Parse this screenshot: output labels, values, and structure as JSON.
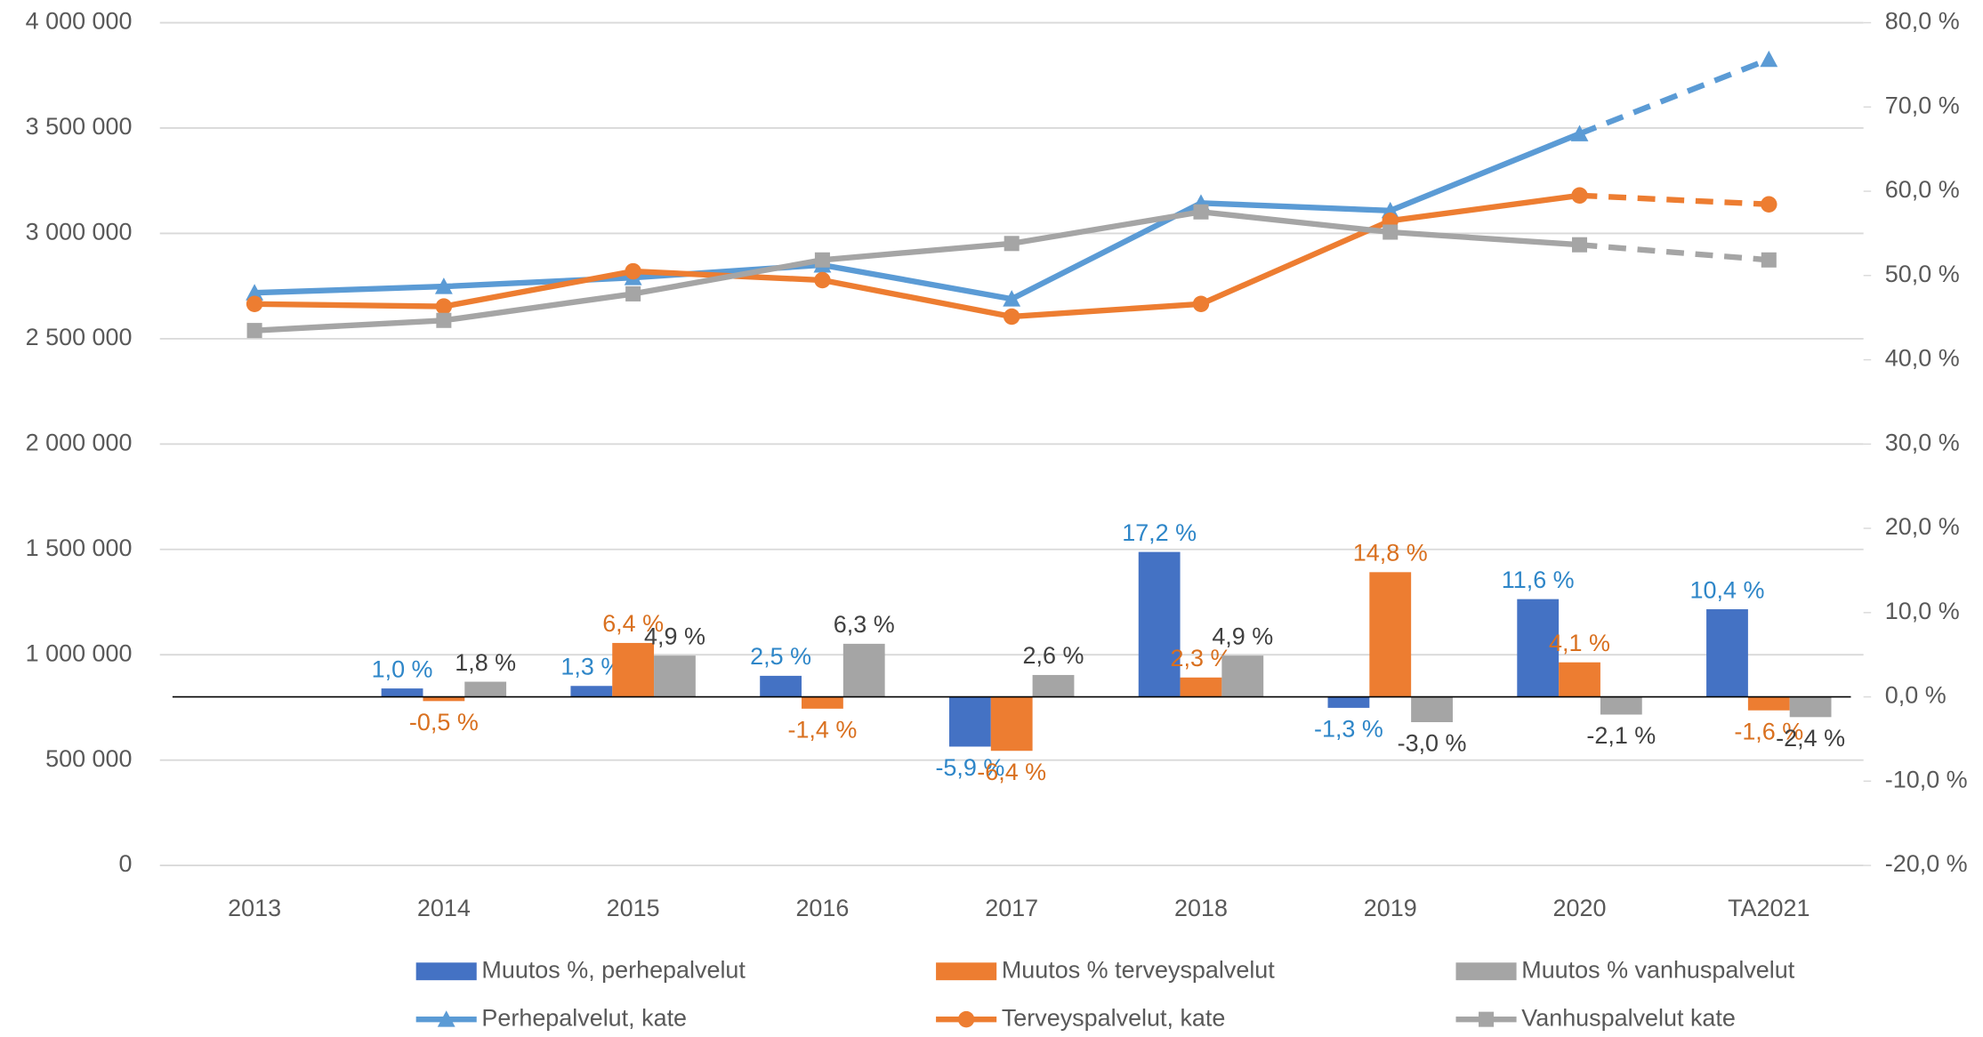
{
  "chart_data": {
    "type": "combo",
    "categories": [
      "2013",
      "2014",
      "2015",
      "2016",
      "2017",
      "2018",
      "2019",
      "2020",
      "TA2021"
    ],
    "ylim": [
      0,
      4000000
    ],
    "yticks": [
      0,
      {
        "value": 500000,
        "label": "500 000"
      },
      {
        "value": 1000000,
        "label": "1 000 000"
      },
      {
        "value": 1500000,
        "label": "1 500 000"
      },
      {
        "value": 2000000,
        "label": "2 000 000"
      },
      {
        "value": 2500000,
        "label": "2 500 000"
      },
      {
        "value": 3000000,
        "label": "3 000 000"
      },
      {
        "value": 3500000,
        "label": "3 500 000"
      },
      {
        "value": 4000000,
        "label": "4 000 000"
      }
    ],
    "y2lim": [
      -20,
      80
    ],
    "y2ticks": [
      {
        "value": -20,
        "label": "-20,0 %"
      },
      {
        "value": -10,
        "label": "-10,0 %"
      },
      {
        "value": 0,
        "label": "0,0 %"
      },
      {
        "value": 10,
        "label": "10,0 %"
      },
      {
        "value": 20,
        "label": "20,0 %"
      },
      {
        "value": 30,
        "label": "30,0 %"
      },
      {
        "value": 40,
        "label": "40,0 %"
      },
      {
        "value": 50,
        "label": "50,0 %"
      },
      {
        "value": 60,
        "label": "60,0 %"
      },
      {
        "value": 70,
        "label": "70,0 %"
      },
      {
        "value": 80,
        "label": "80,0 %"
      }
    ],
    "grid": true,
    "legend": "bottom",
    "series": [
      {
        "name": "Muutos %, perhepalvelut",
        "type": "bar",
        "axis": "y2",
        "color": "#4472c4",
        "label_color": "#2e86c8",
        "values": [
          null,
          1.0,
          1.3,
          2.5,
          -5.9,
          17.2,
          -1.3,
          11.6,
          10.4
        ],
        "value_labels": [
          null,
          "1,0 %",
          "1,3 %",
          "2,5 %",
          "-5,9 %",
          "17,2 %",
          "-1,3 %",
          "11,6 %",
          "10,4 %"
        ]
      },
      {
        "name": "Muutos % terveyspalvelut",
        "type": "bar",
        "axis": "y2",
        "color": "#ed7d31",
        "label_color": "#d9701f",
        "values": [
          null,
          -0.5,
          6.4,
          -1.4,
          -6.4,
          2.3,
          14.8,
          4.1,
          -1.6
        ],
        "value_labels": [
          null,
          "-0,5 %",
          "6,4 %",
          "-1,4 %",
          "-6,4 %",
          "2,3 %",
          "14,8 %",
          "4,1 %",
          "-1,6 %"
        ]
      },
      {
        "name": "Muutos % vanhuspalvelut",
        "type": "bar",
        "axis": "y2",
        "color": "#a5a5a5",
        "label_color": "#404040",
        "values": [
          null,
          1.8,
          4.9,
          6.3,
          2.6,
          4.9,
          -3.0,
          -2.1,
          -2.4
        ],
        "value_labels": [
          null,
          "1,8 %",
          "4,9 %",
          "6,3 %",
          "2,6 %",
          "4,9 %",
          "-3,0 %",
          "-2,1 %",
          "-2,4 %"
        ]
      },
      {
        "name": "Perhepalvelut, kate",
        "type": "line",
        "marker": "triangle",
        "color": "#5b9bd5",
        "values": [
          2718000,
          2748000,
          2790000,
          2850000,
          2689000,
          3144000,
          3108000,
          3473000,
          3826000
        ]
      },
      {
        "name": "Terveyspalvelut, kate",
        "type": "line",
        "marker": "circle",
        "color": "#ed7d31",
        "values": [
          2665000,
          2653000,
          2820000,
          2778000,
          2605000,
          2665000,
          3060000,
          3180000,
          3138000
        ]
      },
      {
        "name": "Vanhuspalvelut kate",
        "type": "line",
        "marker": "square",
        "color": "#a5a5a5",
        "values": [
          2539000,
          2587000,
          2713000,
          2874000,
          2952000,
          3102000,
          3006000,
          2946000,
          2874000
        ]
      }
    ]
  }
}
